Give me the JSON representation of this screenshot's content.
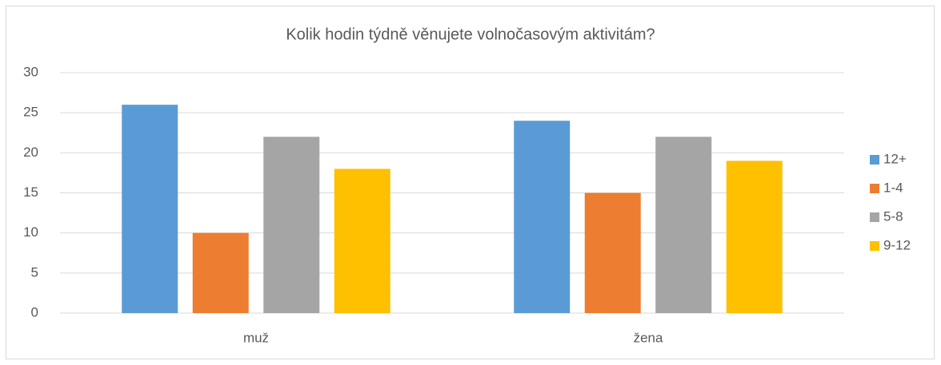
{
  "chart_data": {
    "type": "bar",
    "title": "Kolik hodin týdně věnujete volnočasovým aktivitám?",
    "categories": [
      "muž",
      "žena"
    ],
    "series": [
      {
        "name": "12+",
        "color": "#5b9bd5",
        "values": [
          26,
          24
        ]
      },
      {
        "name": "1-4",
        "color": "#ed7d31",
        "values": [
          10,
          15
        ]
      },
      {
        "name": "5-8",
        "color": "#a5a5a5",
        "values": [
          22,
          22
        ]
      },
      {
        "name": "9-12",
        "color": "#ffc000",
        "values": [
          18,
          19
        ]
      }
    ],
    "ylim": [
      0,
      30
    ],
    "yticks": [
      0,
      5,
      10,
      15,
      20,
      25,
      30
    ],
    "grid": true,
    "legend": "right"
  }
}
